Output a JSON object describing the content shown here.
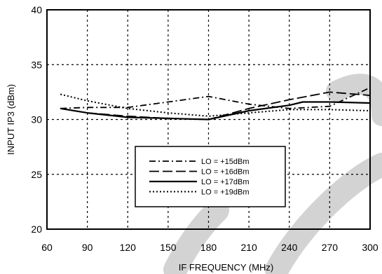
{
  "chart_data": {
    "type": "line",
    "xlabel": "IF FREQUENCY (MHz)",
    "ylabel": "INPUT IP3 (dBm)",
    "xlim": [
      60,
      300
    ],
    "ylim": [
      20,
      40
    ],
    "xticks": [
      60,
      90,
      120,
      150,
      180,
      210,
      240,
      270,
      300
    ],
    "yticks": [
      20,
      25,
      30,
      35,
      40
    ],
    "grid": true,
    "legend_position": "center-bottom",
    "series": [
      {
        "name": "LO = +15dBm",
        "style": "dash-dot",
        "x": [
          70,
          90,
          120,
          150,
          180,
          210,
          240,
          270,
          300
        ],
        "y": [
          31.0,
          31.1,
          31.1,
          31.6,
          32.1,
          31.4,
          31.0,
          31.2,
          32.9
        ]
      },
      {
        "name": "LO = +16dBm",
        "style": "long-dash",
        "x": [
          70,
          90,
          120,
          150,
          180,
          210,
          240,
          270,
          300
        ],
        "y": [
          31.0,
          30.6,
          30.3,
          30.1,
          30.0,
          31.0,
          31.8,
          32.5,
          32.2
        ]
      },
      {
        "name": "LO = +17dBm",
        "style": "solid",
        "x": [
          70,
          90,
          120,
          150,
          180,
          210,
          240,
          250,
          270,
          300
        ],
        "y": [
          31.0,
          30.6,
          30.2,
          30.1,
          30.0,
          30.8,
          31.3,
          31.6,
          31.6,
          31.5
        ]
      },
      {
        "name": "LO = +19dBm",
        "style": "dotted",
        "x": [
          70,
          90,
          120,
          150,
          180,
          210,
          240,
          270,
          300
        ],
        "y": [
          32.3,
          31.7,
          31.0,
          30.6,
          30.3,
          30.6,
          30.9,
          30.9,
          30.8
        ]
      }
    ]
  }
}
